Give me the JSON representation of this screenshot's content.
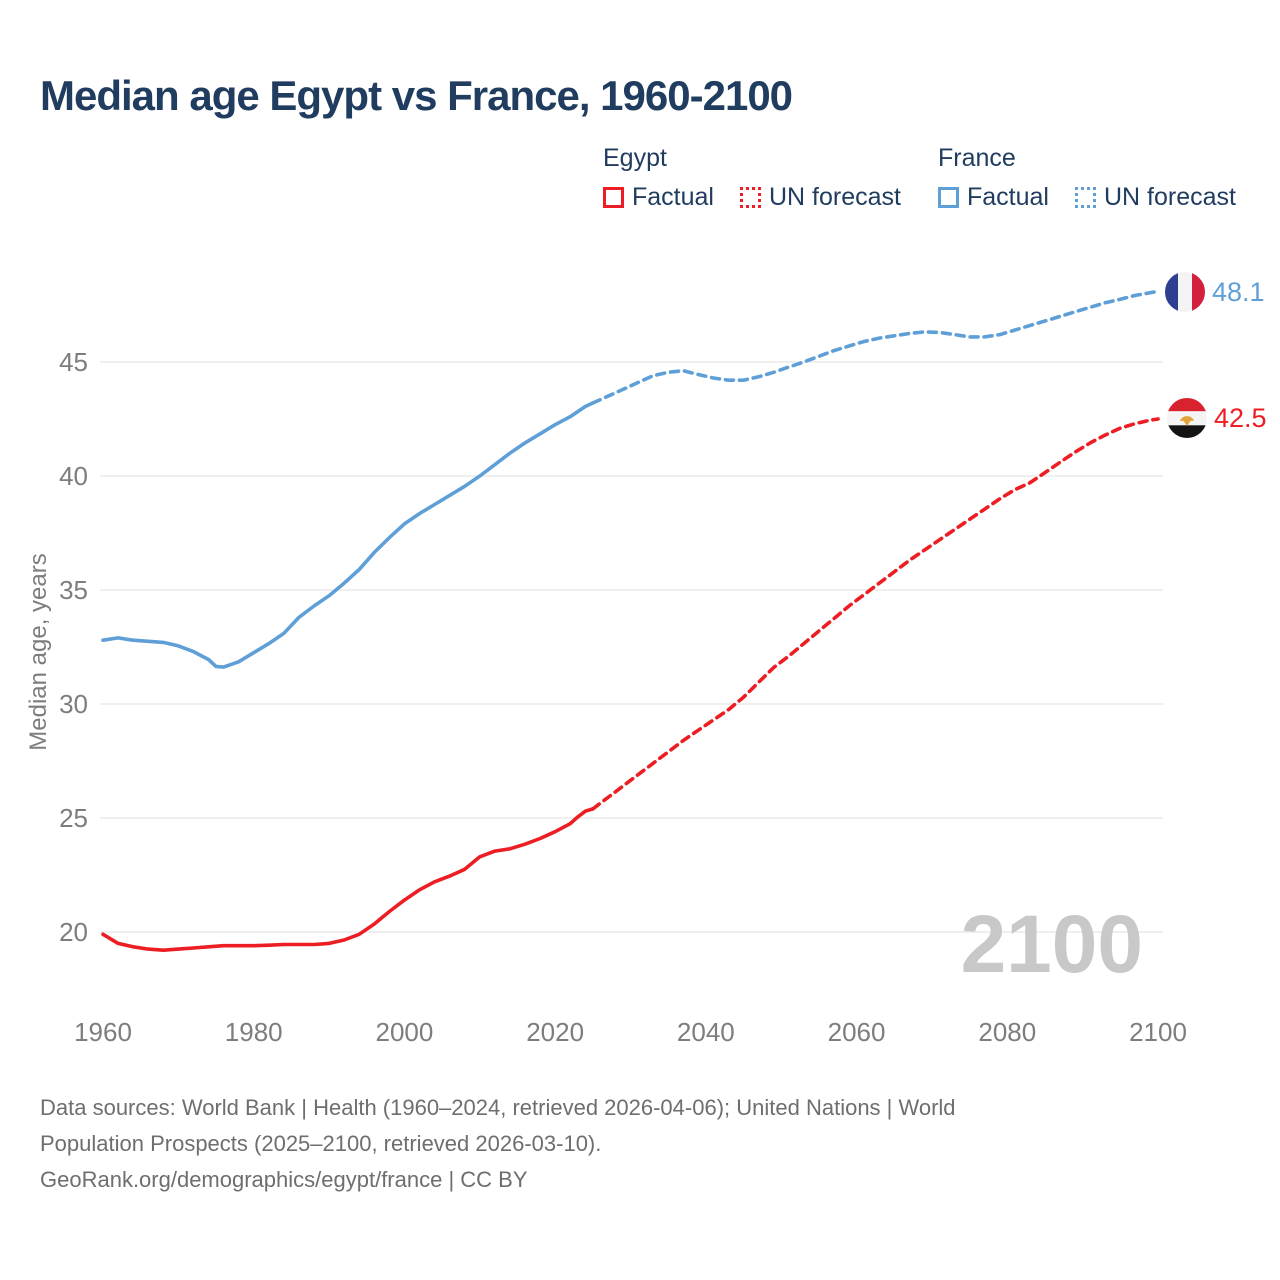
{
  "title": "Median age Egypt vs France, 1960-2100",
  "legend": {
    "egypt": {
      "name": "Egypt",
      "factual_label": "Factual",
      "forecast_label": "UN forecast",
      "color": "#ec1e24"
    },
    "france": {
      "name": "France",
      "factual_label": "Factual",
      "forecast_label": "UN forecast",
      "color": "#5f9fd8"
    }
  },
  "watermark": "2100",
  "end_labels": {
    "france": {
      "value": "48.1",
      "flag": "france-flag"
    },
    "egypt": {
      "value": "42.5",
      "flag": "egypt-flag"
    }
  },
  "footer": {
    "line1": "Data sources: World Bank | Health (1960–2024, retrieved 2026-04-06); United Nations | World",
    "line2": "Population Prospects (2025–2100, retrieved 2026-03-10).",
    "line3": "GeoRank.org/demographics/egypt/france | CC BY"
  },
  "chart_data": {
    "type": "line",
    "title": "Median age Egypt vs France, 1960-2100",
    "xlabel": "",
    "ylabel": "Median age, years",
    "x_ticks": [
      1960,
      1980,
      2000,
      2020,
      2040,
      2060,
      2080,
      2100
    ],
    "y_ticks": [
      20,
      25,
      30,
      35,
      40,
      45
    ],
    "xlim": [
      1960,
      2100
    ],
    "ylim": [
      17.5,
      50
    ],
    "grid": "horizontal",
    "legend_position": "top",
    "forecast_start_year": 2025,
    "series": [
      {
        "name": "France Factual",
        "color": "#5f9fd8",
        "style": "solid",
        "points": [
          [
            1960,
            32.8
          ],
          [
            1962,
            32.9
          ],
          [
            1964,
            32.8
          ],
          [
            1966,
            32.75
          ],
          [
            1968,
            32.7
          ],
          [
            1970,
            32.55
          ],
          [
            1972,
            32.3
          ],
          [
            1974,
            31.95
          ],
          [
            1975,
            31.65
          ],
          [
            1976,
            31.62
          ],
          [
            1978,
            31.85
          ],
          [
            1980,
            32.25
          ],
          [
            1982,
            32.65
          ],
          [
            1984,
            33.1
          ],
          [
            1986,
            33.8
          ],
          [
            1988,
            34.3
          ],
          [
            1990,
            34.75
          ],
          [
            1992,
            35.3
          ],
          [
            1994,
            35.9
          ],
          [
            1996,
            36.65
          ],
          [
            1998,
            37.3
          ],
          [
            2000,
            37.9
          ],
          [
            2002,
            38.35
          ],
          [
            2004,
            38.75
          ],
          [
            2006,
            39.15
          ],
          [
            2008,
            39.55
          ],
          [
            2010,
            40.0
          ],
          [
            2012,
            40.5
          ],
          [
            2014,
            41.0
          ],
          [
            2016,
            41.45
          ],
          [
            2018,
            41.85
          ],
          [
            2020,
            42.25
          ],
          [
            2022,
            42.6
          ],
          [
            2024,
            43.05
          ],
          [
            2025,
            43.2
          ]
        ]
      },
      {
        "name": "France UN forecast",
        "color": "#5f9fd8",
        "style": "dashed",
        "points": [
          [
            2025,
            43.2
          ],
          [
            2027,
            43.5
          ],
          [
            2029,
            43.8
          ],
          [
            2031,
            44.1
          ],
          [
            2033,
            44.4
          ],
          [
            2035,
            44.55
          ],
          [
            2037,
            44.62
          ],
          [
            2039,
            44.45
          ],
          [
            2041,
            44.3
          ],
          [
            2043,
            44.2
          ],
          [
            2045,
            44.2
          ],
          [
            2047,
            44.35
          ],
          [
            2049,
            44.55
          ],
          [
            2051,
            44.78
          ],
          [
            2053,
            45.0
          ],
          [
            2055,
            45.25
          ],
          [
            2057,
            45.5
          ],
          [
            2059,
            45.7
          ],
          [
            2061,
            45.9
          ],
          [
            2063,
            46.05
          ],
          [
            2065,
            46.15
          ],
          [
            2067,
            46.25
          ],
          [
            2069,
            46.32
          ],
          [
            2071,
            46.3
          ],
          [
            2073,
            46.2
          ],
          [
            2075,
            46.1
          ],
          [
            2077,
            46.1
          ],
          [
            2079,
            46.2
          ],
          [
            2081,
            46.4
          ],
          [
            2083,
            46.6
          ],
          [
            2085,
            46.8
          ],
          [
            2087,
            47.0
          ],
          [
            2089,
            47.2
          ],
          [
            2091,
            47.4
          ],
          [
            2093,
            47.6
          ],
          [
            2095,
            47.75
          ],
          [
            2097,
            47.92
          ],
          [
            2100,
            48.1
          ]
        ]
      },
      {
        "name": "Egypt Factual",
        "color": "#ec1e24",
        "style": "solid",
        "points": [
          [
            1960,
            19.9
          ],
          [
            1962,
            19.5
          ],
          [
            1964,
            19.35
          ],
          [
            1966,
            19.25
          ],
          [
            1968,
            19.2
          ],
          [
            1970,
            19.25
          ],
          [
            1972,
            19.3
          ],
          [
            1974,
            19.35
          ],
          [
            1976,
            19.4
          ],
          [
            1978,
            19.4
          ],
          [
            1980,
            19.4
          ],
          [
            1982,
            19.42
          ],
          [
            1984,
            19.45
          ],
          [
            1986,
            19.45
          ],
          [
            1988,
            19.45
          ],
          [
            1990,
            19.5
          ],
          [
            1992,
            19.65
          ],
          [
            1994,
            19.9
          ],
          [
            1996,
            20.35
          ],
          [
            1998,
            20.9
          ],
          [
            2000,
            21.4
          ],
          [
            2002,
            21.85
          ],
          [
            2004,
            22.2
          ],
          [
            2006,
            22.45
          ],
          [
            2008,
            22.75
          ],
          [
            2010,
            23.3
          ],
          [
            2012,
            23.55
          ],
          [
            2014,
            23.65
          ],
          [
            2016,
            23.85
          ],
          [
            2018,
            24.1
          ],
          [
            2020,
            24.4
          ],
          [
            2022,
            24.75
          ],
          [
            2023,
            25.05
          ],
          [
            2024,
            25.3
          ],
          [
            2025,
            25.4
          ]
        ]
      },
      {
        "name": "Egypt UN forecast",
        "color": "#ec1e24",
        "style": "dashed",
        "points": [
          [
            2025,
            25.4
          ],
          [
            2027,
            25.9
          ],
          [
            2029,
            26.4
          ],
          [
            2031,
            26.9
          ],
          [
            2033,
            27.4
          ],
          [
            2035,
            27.9
          ],
          [
            2037,
            28.4
          ],
          [
            2039,
            28.85
          ],
          [
            2041,
            29.3
          ],
          [
            2043,
            29.75
          ],
          [
            2045,
            30.3
          ],
          [
            2047,
            30.95
          ],
          [
            2049,
            31.6
          ],
          [
            2051,
            32.1
          ],
          [
            2053,
            32.65
          ],
          [
            2055,
            33.2
          ],
          [
            2057,
            33.75
          ],
          [
            2059,
            34.3
          ],
          [
            2061,
            34.8
          ],
          [
            2063,
            35.3
          ],
          [
            2065,
            35.8
          ],
          [
            2067,
            36.3
          ],
          [
            2069,
            36.75
          ],
          [
            2071,
            37.2
          ],
          [
            2073,
            37.65
          ],
          [
            2075,
            38.1
          ],
          [
            2077,
            38.55
          ],
          [
            2079,
            39.0
          ],
          [
            2081,
            39.4
          ],
          [
            2083,
            39.7
          ],
          [
            2085,
            40.15
          ],
          [
            2087,
            40.6
          ],
          [
            2089,
            41.05
          ],
          [
            2091,
            41.45
          ],
          [
            2093,
            41.8
          ],
          [
            2095,
            42.1
          ],
          [
            2097,
            42.3
          ],
          [
            2099,
            42.45
          ],
          [
            2100,
            42.5
          ]
        ]
      }
    ],
    "end_values": {
      "france": 48.1,
      "egypt": 42.5
    },
    "colors": {
      "grid": "#eaeaea",
      "tick_text": "#7d7d7d",
      "watermark": "#c8c8c8",
      "france_flag": {
        "blue": "#2e3f92",
        "white": "#f4f4f4",
        "red": "#d2203e"
      },
      "egypt_flag": {
        "red": "#d8232e",
        "white": "#f4f4f4",
        "black": "#141414",
        "gold": "#e3a23c"
      }
    }
  }
}
